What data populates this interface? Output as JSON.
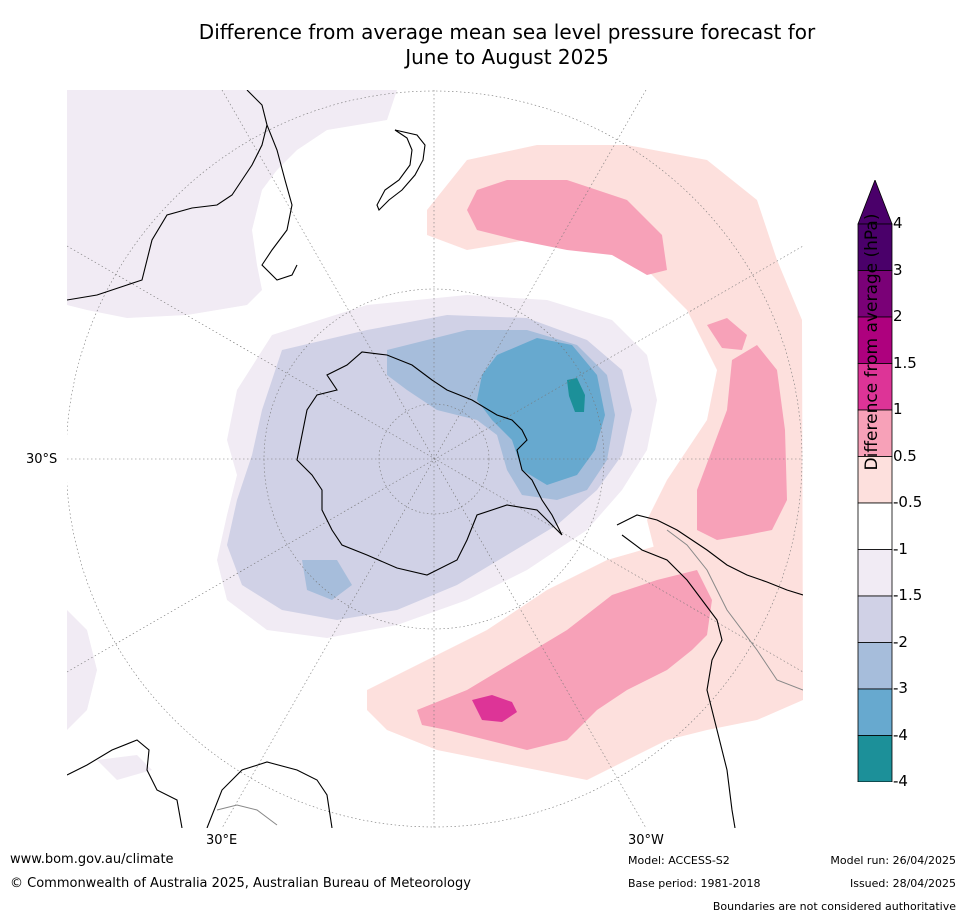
{
  "title": {
    "line1": "Difference from average mean sea level pressure forecast for",
    "line2": "June to August 2025"
  },
  "map": {
    "projection": "south-polar stereographic",
    "labels": {
      "lat_30s": "30°S",
      "lon_30e": "30°E",
      "lon_30w": "30°W"
    }
  },
  "colorbar": {
    "title": "Difference from average (hPa)",
    "bins": [
      {
        "label": "4",
        "color": "#4a006a"
      },
      {
        "label": "3",
        "color": "#7a0177"
      },
      {
        "label": "2",
        "color": "#ae017e"
      },
      {
        "label": "1.5",
        "color": "#dd3497"
      },
      {
        "label": "1",
        "color": "#f7a1b8"
      },
      {
        "label": "0.5",
        "color": "#fde0dd"
      },
      {
        "label": "-0.5",
        "color": "#ffffff"
      },
      {
        "label": "-1",
        "color": "#f1ebf4"
      },
      {
        "label": "-1.5",
        "color": "#d0d1e6"
      },
      {
        "label": "-2",
        "color": "#a6bddb"
      },
      {
        "label": "-3",
        "color": "#67a9cf"
      },
      {
        "label": "-4",
        "color": "#1c9099"
      }
    ],
    "over_color": "#4a006a",
    "under_color": "#016c59"
  },
  "footer": {
    "url": "www.bom.gov.au/climate",
    "copyright": "© Commonwealth of Australia 2025, Australian Bureau of Meteorology",
    "model": "Model: ACCESS-S2",
    "base_period": "Base period: 1981-2018",
    "model_run": "Model run: 26/04/2025",
    "issued": "Issued: 28/04/2025",
    "disclaimer": "Boundaries are not considered authoritative"
  }
}
